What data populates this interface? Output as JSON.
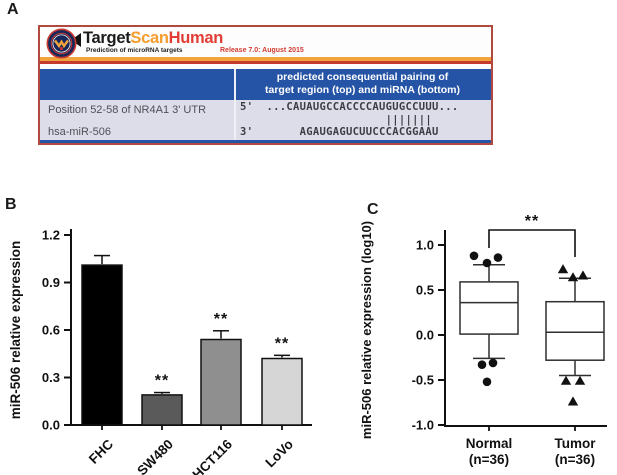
{
  "colors": {
    "header_blue": "#2553a5",
    "table_body": "#dcdde9",
    "panel_border_red": "#b0493f",
    "stripe_orange": "#f2a43c",
    "stripe_red": "#c63a2e",
    "logo_navy": "#17275c",
    "logo_scan_orange": "#f59d2f",
    "logo_human_red": "#e23d35",
    "bar_colors": [
      "#000000",
      "#5a5a5a",
      "#8f8f8f",
      "#d6d6d6"
    ]
  },
  "panels": {
    "a": {
      "label": "A",
      "logo": {
        "part_target": "Target",
        "part_scan": "Scan",
        "part_human": "Human",
        "subtitle": "Prediction of microRNA targets",
        "release": "Release 7.0: August 2015"
      },
      "table": {
        "header_line1": "predicted consequential pairing of",
        "header_line2": "target region (top) and miRNA (bottom)",
        "row1_label": "Position 52-58 of NR4A1 3' UTR",
        "row2_label": "hsa-miR-506",
        "seq_line1": "5'  ...CAUAUGCCACCCCAUGUGCCUUU...",
        "seq_line2": "                      |||||||",
        "seq_line3": "3'       AGAUGAGUCUUCCCACGGAAU"
      }
    },
    "b": {
      "label": "B"
    },
    "c": {
      "label": "C"
    }
  },
  "chart_data": [
    {
      "type": "bar",
      "panel": "B",
      "ylabel": "miR-506 relative expression",
      "categories": [
        "FHC",
        "SW480",
        "HCT116",
        "LoVo"
      ],
      "values": [
        1.01,
        0.19,
        0.54,
        0.42
      ],
      "errors": [
        0.06,
        0.015,
        0.055,
        0.02
      ],
      "significance": [
        "",
        "**",
        "**",
        "**"
      ],
      "yticks": [
        0.0,
        0.3,
        0.6,
        0.9,
        1.2
      ],
      "ylim": [
        0,
        1.2
      ],
      "grid": false,
      "legend": "none"
    },
    {
      "type": "box",
      "panel": "C",
      "ylabel": "miR-506 relative expression (log10)",
      "yticks": [
        -1.0,
        -0.5,
        0.0,
        0.5,
        1.0
      ],
      "ylim": [
        -1.0,
        1.0
      ],
      "significance": "**",
      "grid": false,
      "groups": [
        {
          "label": "Normal",
          "sublabel": "(n=36)",
          "marker": "circle",
          "whisker_low": -0.26,
          "q1": 0.01,
          "median": 0.36,
          "q3": 0.59,
          "whisker_high": 0.78,
          "outliers_high": [
            0.88,
            0.8,
            0.86
          ],
          "outliers_low": [
            -0.33,
            -0.31,
            -0.52
          ]
        },
        {
          "label": "Tumor",
          "sublabel": "(n=36)",
          "marker": "triangle",
          "whisker_low": -0.45,
          "q1": -0.28,
          "median": 0.03,
          "q3": 0.37,
          "whisker_high": 0.63,
          "outliers_high": [
            0.73,
            0.64,
            0.66
          ],
          "outliers_low": [
            -0.51,
            -0.51,
            -0.74
          ]
        }
      ]
    }
  ]
}
